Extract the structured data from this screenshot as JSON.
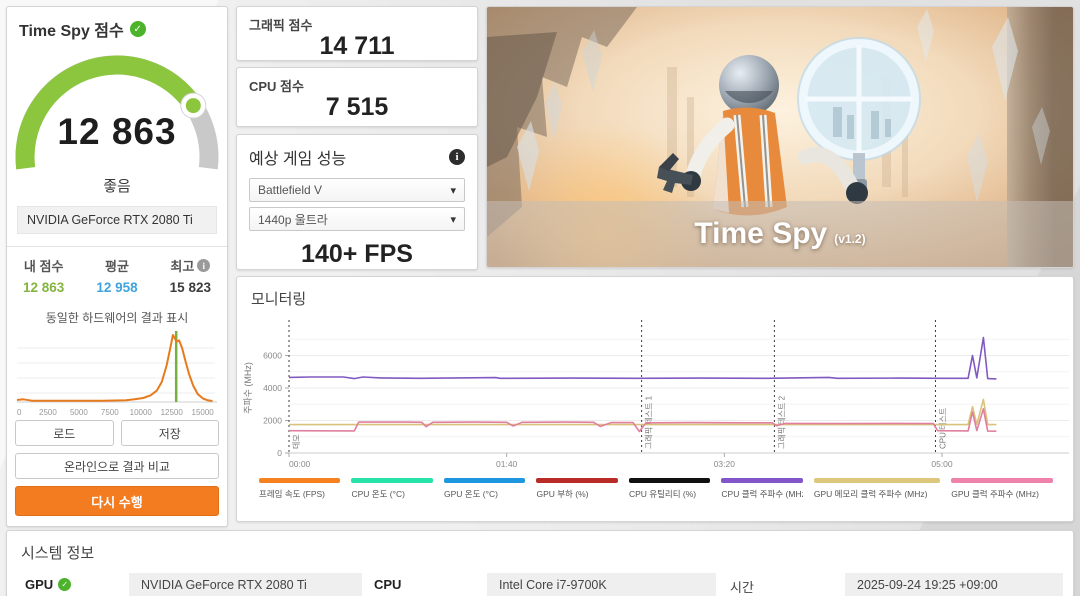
{
  "score_panel": {
    "title": "Time Spy 점수",
    "score": "12 863",
    "rating": "좋음",
    "gpu_name": "NVIDIA GeForce RTX 2080 Ti",
    "columns": [
      {
        "label": "내 점수",
        "value": "12 863"
      },
      {
        "label": "평균",
        "value": "12 958"
      },
      {
        "label": "최고",
        "value": "15 823"
      }
    ],
    "buttons": {
      "load": "로드",
      "save": "저장",
      "compare": "온라인으로 결과 비교",
      "rerun": "다시 수행"
    }
  },
  "sub_scores": [
    {
      "label": "그래픽 점수",
      "value": "14 711"
    },
    {
      "label": "CPU 점수",
      "value": "7 515"
    }
  ],
  "game_perf": {
    "title": "예상 게임 성능",
    "game": "Battlefield V",
    "preset": "1440p 울트라",
    "fps": "140+ FPS"
  },
  "hero": {
    "title": "Time Spy",
    "version": "(v1.2)"
  },
  "monitoring": {
    "title": "모니터링"
  },
  "system_info": {
    "title": "시스템 정보",
    "gpu_label": "GPU",
    "gpu": "NVIDIA GeForce RTX 2080 Ti",
    "cpu_label": "CPU",
    "cpu": "Intel Core i7-9700K",
    "time_label": "시간",
    "time": "2025-09-24 19:25 +09:00"
  },
  "chart_data": [
    {
      "type": "area",
      "id": "score_histogram",
      "title": "동일한 하드웨어의 결과 표시",
      "xlim": [
        0,
        16000
      ],
      "xticks": [
        0,
        2500,
        5000,
        7500,
        10000,
        12500,
        15000
      ],
      "line_color": "#e87a1e",
      "marker_value": 12863,
      "marker_color": "#76b041",
      "points": [
        [
          0,
          0.03
        ],
        [
          500,
          0.04
        ],
        [
          1200,
          0.02
        ],
        [
          3000,
          0.02
        ],
        [
          5000,
          0.02
        ],
        [
          7000,
          0.02
        ],
        [
          8800,
          0.025
        ],
        [
          9500,
          0.04
        ],
        [
          10200,
          0.06
        ],
        [
          10800,
          0.1
        ],
        [
          11300,
          0.17
        ],
        [
          11700,
          0.3
        ],
        [
          12100,
          0.55
        ],
        [
          12400,
          0.82
        ],
        [
          12600,
          1.0
        ],
        [
          12750,
          0.95
        ],
        [
          12900,
          0.9
        ],
        [
          13100,
          0.92
        ],
        [
          13350,
          0.8
        ],
        [
          13600,
          0.62
        ],
        [
          13900,
          0.42
        ],
        [
          14250,
          0.24
        ],
        [
          14600,
          0.12
        ],
        [
          15000,
          0.055
        ],
        [
          15400,
          0.025
        ],
        [
          15800,
          0.015
        ]
      ]
    },
    {
      "type": "line",
      "id": "monitoring",
      "ylabel": "주파수 (MHz)",
      "ylim": [
        0,
        8000
      ],
      "yticks": [
        0,
        2000,
        4000,
        6000
      ],
      "xticks": [
        {
          "t": 0,
          "label": "00:00"
        },
        {
          "t": 100,
          "label": "01:40"
        },
        {
          "t": 200,
          "label": "03:20"
        },
        {
          "t": 300,
          "label": "05:00"
        }
      ],
      "x_seconds_max": 358,
      "sections": [
        {
          "t": 0,
          "label": "데모"
        },
        {
          "t": 162,
          "label": "그래픽 테스트 1"
        },
        {
          "t": 223,
          "label": "그래픽 테스트 2"
        },
        {
          "t": 297,
          "label": "CPU 테스트"
        }
      ],
      "series": [
        {
          "name": "CPU 클럭 주파수 (MHz)",
          "color": "#8159c0",
          "points": [
            [
              0,
              4650
            ],
            [
              10,
              4680
            ],
            [
              25,
              4680
            ],
            [
              30,
              4580
            ],
            [
              34,
              4680
            ],
            [
              42,
              4620
            ],
            [
              60,
              4600
            ],
            [
              95,
              4640
            ],
            [
              97,
              4600
            ],
            [
              130,
              4610
            ],
            [
              160,
              4600
            ],
            [
              190,
              4610
            ],
            [
              220,
              4600
            ],
            [
              248,
              4650
            ],
            [
              252,
              4600
            ],
            [
              280,
              4610
            ],
            [
              300,
              4600
            ],
            [
              312,
              4600
            ],
            [
              314,
              6000
            ],
            [
              316,
              4620
            ],
            [
              319,
              7100
            ],
            [
              321,
              4580
            ],
            [
              325,
              4560
            ]
          ]
        },
        {
          "name": "GPU 메모리 클럭 주파수 (MHz)",
          "color": "#d9c37a",
          "points": [
            [
              0,
              1750
            ],
            [
              100,
              1750
            ],
            [
              200,
              1750
            ],
            [
              300,
              1750
            ],
            [
              312,
              1750
            ],
            [
              314,
              2850
            ],
            [
              316,
              1760
            ],
            [
              319,
              3300
            ],
            [
              321,
              1750
            ],
            [
              325,
              1750
            ]
          ]
        },
        {
          "name": "GPU 클럭 주파수 (MHz)",
          "color": "#e07f9e",
          "points": [
            [
              0,
              1370
            ],
            [
              30,
              1360
            ],
            [
              32,
              1900
            ],
            [
              55,
              1900
            ],
            [
              61,
              1890
            ],
            [
              63,
              1620
            ],
            [
              66,
              1890
            ],
            [
              85,
              1900
            ],
            [
              100,
              1890
            ],
            [
              103,
              1660
            ],
            [
              107,
              1890
            ],
            [
              128,
              1900
            ],
            [
              140,
              1890
            ],
            [
              143,
              1630
            ],
            [
              148,
              1870
            ],
            [
              158,
              1880
            ],
            [
              161,
              1320
            ],
            [
              164,
              1860
            ],
            [
              185,
              1870
            ],
            [
              210,
              1860
            ],
            [
              222,
              1860
            ],
            [
              224,
              1680
            ],
            [
              228,
              1820
            ],
            [
              255,
              1810
            ],
            [
              280,
              1820
            ],
            [
              296,
              1810
            ],
            [
              298,
              1370
            ],
            [
              312,
              1360
            ],
            [
              314,
              2520
            ],
            [
              316,
              1380
            ],
            [
              319,
              2720
            ],
            [
              321,
              1350
            ],
            [
              325,
              1340
            ]
          ]
        }
      ],
      "legend": [
        {
          "label": "프레임 속도 (FPS)",
          "color": "#f5821f"
        },
        {
          "label": "CPU 온도 (°C)",
          "color": "#27e2a9"
        },
        {
          "label": "GPU 온도 (°C)",
          "color": "#1f97e0"
        },
        {
          "label": "GPU 부하 (%)",
          "color": "#b92b27"
        },
        {
          "label": "CPU 유틸리티 (%)",
          "color": "#101010"
        },
        {
          "label": "CPU 클럭 주파수 (MHz)",
          "color": "#8256c8"
        },
        {
          "label": "GPU 메모리 클럭 주파수 (MHz)",
          "color": "#dcc77d"
        },
        {
          "label": "GPU 클럭 주파수 (MHz)",
          "color": "#ee82ab"
        }
      ]
    }
  ]
}
